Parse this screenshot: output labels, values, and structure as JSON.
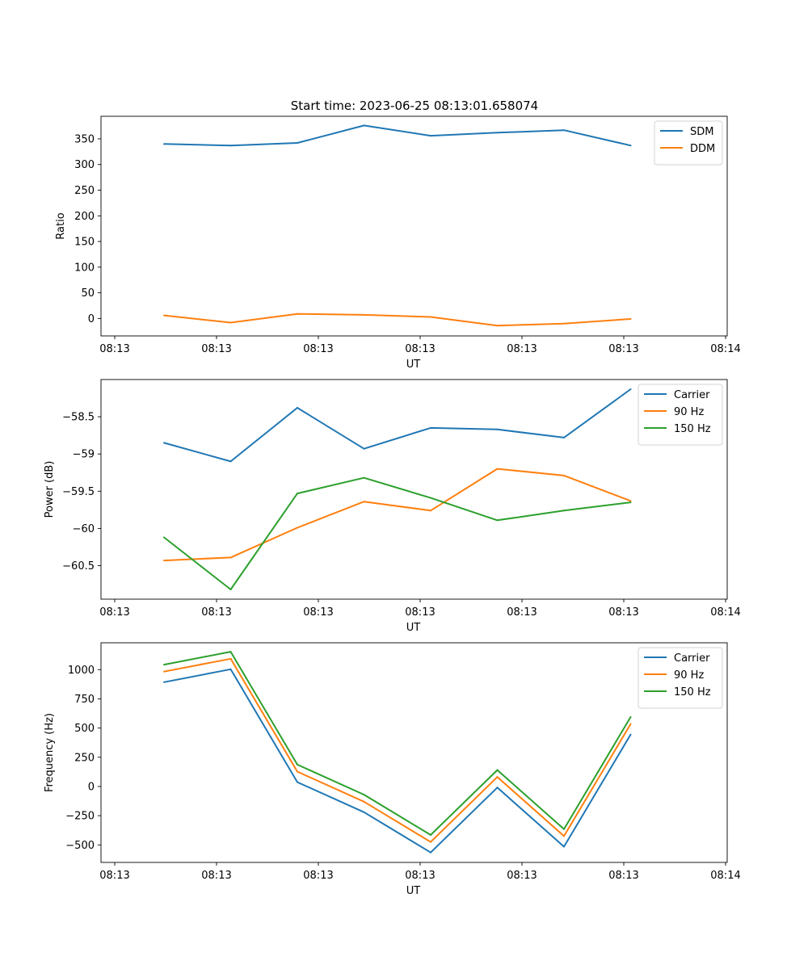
{
  "figure": {
    "title": "Start time: 2023-06-25 08:13:01.658074"
  },
  "colors": {
    "blue": "#1f77b4",
    "orange": "#ff7f0e",
    "green": "#2ca02c"
  },
  "chart_data": [
    {
      "type": "line",
      "xlabel": "UT",
      "ylabel": "Ratio",
      "x_tick_labels": [
        "08:13",
        "08:13",
        "08:13",
        "08:13",
        "08:13",
        "08:13",
        "08:14"
      ],
      "y_ticks": [
        0,
        50,
        100,
        150,
        200,
        250,
        300,
        350
      ],
      "ylim": [
        -34,
        394
      ],
      "legend_position": "top-right",
      "x": [
        1,
        2,
        3,
        4,
        5,
        6,
        7,
        8
      ],
      "series": [
        {
          "name": "SDM",
          "color": "#1f77b4",
          "values": [
            340,
            337,
            342,
            376,
            356,
            362,
            367,
            337
          ]
        },
        {
          "name": "DDM",
          "color": "#ff7f0e",
          "values": [
            6,
            -8,
            9,
            7,
            3,
            -14,
            -10,
            -1
          ]
        }
      ]
    },
    {
      "type": "line",
      "xlabel": "UT",
      "ylabel": "Power (dB)",
      "x_tick_labels": [
        "08:13",
        "08:13",
        "08:13",
        "08:13",
        "08:13",
        "08:13",
        "08:14"
      ],
      "y_ticks": [
        -58.5,
        -59.0,
        -59.5,
        -60.0,
        -60.5
      ],
      "ylim": [
        -60.95,
        -58.0
      ],
      "legend_position": "top-right",
      "x": [
        1,
        2,
        3,
        4,
        5,
        6,
        7,
        8
      ],
      "series": [
        {
          "name": "Carrier",
          "color": "#1f77b4",
          "values": [
            -58.85,
            -59.1,
            -58.38,
            -58.93,
            -58.65,
            -58.67,
            -58.78,
            -58.13
          ]
        },
        {
          "name": "90 Hz",
          "color": "#ff7f0e",
          "values": [
            -60.43,
            -60.39,
            -59.99,
            -59.64,
            -59.76,
            -59.2,
            -59.29,
            -59.63
          ]
        },
        {
          "name": "150 Hz",
          "color": "#2ca02c",
          "values": [
            -60.12,
            -60.82,
            -59.53,
            -59.32,
            -59.59,
            -59.89,
            -59.76,
            -59.65
          ]
        }
      ]
    },
    {
      "type": "line",
      "xlabel": "UT",
      "ylabel": "Frequency (Hz)",
      "x_tick_labels": [
        "08:13",
        "08:13",
        "08:13",
        "08:13",
        "08:13",
        "08:13",
        "08:14"
      ],
      "y_ticks": [
        -500,
        -250,
        0,
        250,
        500,
        750,
        1000
      ],
      "ylim": [
        -650,
        1230
      ],
      "legend_position": "top-right",
      "x": [
        1,
        2,
        3,
        4,
        5,
        6,
        7,
        8
      ],
      "series": [
        {
          "name": "Carrier",
          "color": "#1f77b4",
          "values": [
            893,
            1003,
            37,
            -220,
            -565,
            -9,
            -515,
            445
          ]
        },
        {
          "name": "90 Hz",
          "color": "#ff7f0e",
          "values": [
            983,
            1093,
            127,
            -130,
            -475,
            81,
            -425,
            535
          ]
        },
        {
          "name": "150 Hz",
          "color": "#2ca02c",
          "values": [
            1043,
            1153,
            187,
            -70,
            -415,
            141,
            -365,
            595
          ]
        }
      ]
    }
  ]
}
